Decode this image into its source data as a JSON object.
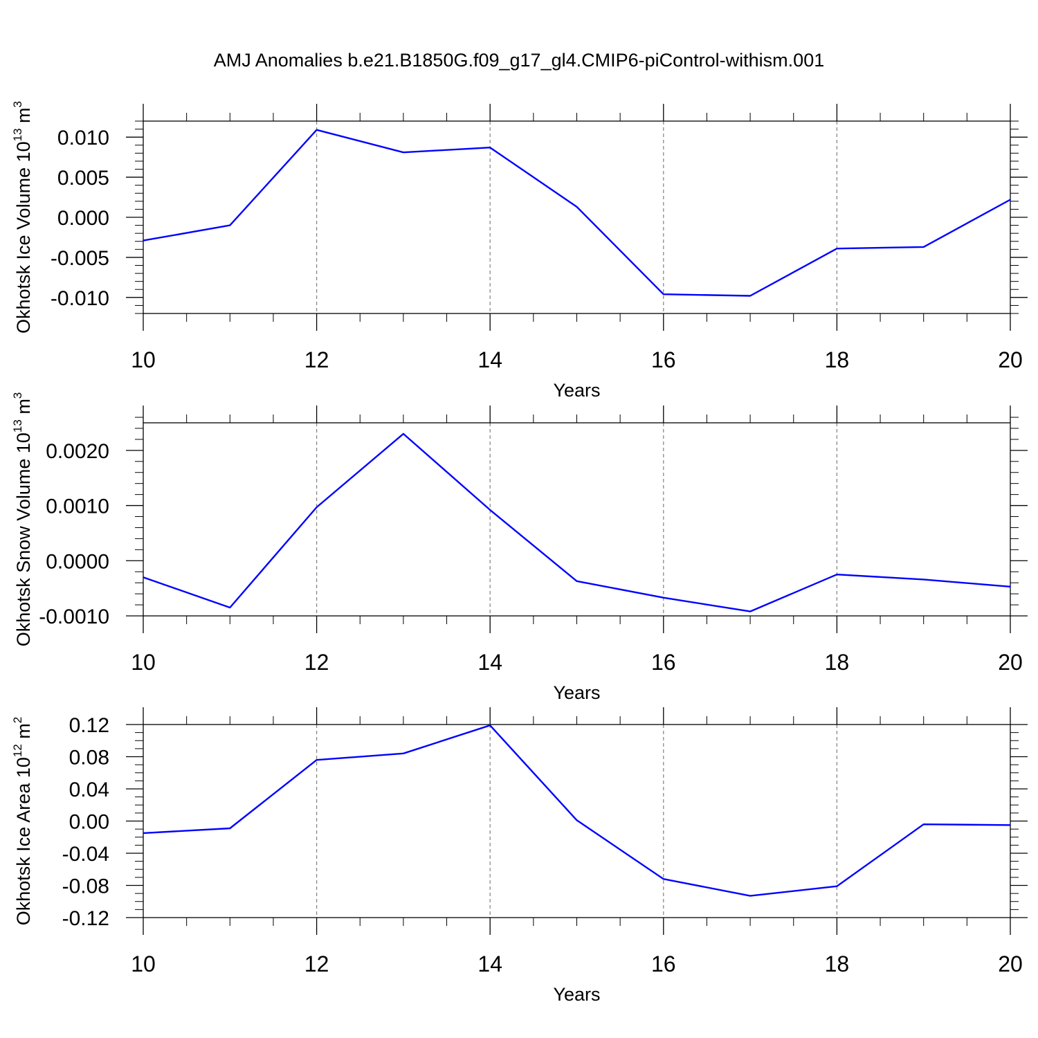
{
  "title": "AMJ Anomalies b.e21.B1850G.f09_g17_gl4.CMIP6-piControl-withism.001",
  "colors": {
    "line": "#0000ff",
    "axis": "#000000",
    "grid": "#808080"
  },
  "chart_data": [
    {
      "type": "line",
      "ylabel": "Okhotsk Ice Volume 10",
      "ylabel_exp": "13",
      "ylabel_unit": " m",
      "ylabel_unit_exp": "3",
      "xlabel": "Years",
      "xlim": [
        10,
        20
      ],
      "ylim": [
        -0.012,
        0.012
      ],
      "xticks": [
        10,
        12,
        14,
        16,
        18,
        20
      ],
      "xtick_labels": [
        "10",
        "12",
        "14",
        "16",
        "18",
        "20"
      ],
      "yticks": [
        -0.01,
        -0.005,
        0,
        0.005,
        0.01
      ],
      "ytick_labels": [
        "-0.010",
        "-0.005",
        "0.000",
        "0.005",
        "0.010"
      ],
      "yminor_step": 0.001,
      "grid": "vertical dashed",
      "series": [
        {
          "x": [
            10,
            11,
            12,
            13,
            14,
            15,
            16,
            17,
            18,
            19,
            20
          ],
          "y": [
            -0.0029,
            -0.001,
            0.0109,
            0.0081,
            0.0087,
            0.0013,
            -0.0096,
            -0.0098,
            -0.0039,
            -0.0037,
            0.0022
          ]
        }
      ]
    },
    {
      "type": "line",
      "ylabel": "Okhotsk Snow Volume 10",
      "ylabel_exp": "13",
      "ylabel_unit": " m",
      "ylabel_unit_exp": "3",
      "xlabel": "Years",
      "xlim": [
        10,
        20
      ],
      "ylim": [
        -0.001,
        0.0025
      ],
      "xticks": [
        10,
        12,
        14,
        16,
        18,
        20
      ],
      "xtick_labels": [
        "10",
        "12",
        "14",
        "16",
        "18",
        "20"
      ],
      "yticks": [
        -0.001,
        0,
        0.001,
        0.002
      ],
      "ytick_labels": [
        "-0.0010",
        "0.0000",
        "0.0010",
        "0.0020"
      ],
      "yminor_step": 0.0002,
      "grid": "vertical dashed",
      "series": [
        {
          "x": [
            10,
            11,
            12,
            13,
            14,
            15,
            16,
            17,
            18,
            19,
            20
          ],
          "y": [
            -0.0003,
            -0.00085,
            0.00097,
            0.0023,
            0.00092,
            -0.00037,
            -0.00067,
            -0.00092,
            -0.00025,
            -0.00034,
            -0.00047
          ]
        }
      ]
    },
    {
      "type": "line",
      "ylabel": "Okhotsk Ice Area 10",
      "ylabel_exp": "12",
      "ylabel_unit": " m",
      "ylabel_unit_exp": "2",
      "xlabel": "Years",
      "xlim": [
        10,
        20
      ],
      "ylim": [
        -0.12,
        0.12
      ],
      "xticks": [
        10,
        12,
        14,
        16,
        18,
        20
      ],
      "xtick_labels": [
        "10",
        "12",
        "14",
        "16",
        "18",
        "20"
      ],
      "yticks": [
        -0.12,
        -0.08,
        -0.04,
        0,
        0.04,
        0.08,
        0.12
      ],
      "ytick_labels": [
        "-0.12",
        "-0.08",
        "-0.04",
        "0.00",
        "0.04",
        "0.08",
        "0.12"
      ],
      "yminor_step": 0.01,
      "grid": "vertical dashed",
      "series": [
        {
          "x": [
            10,
            11,
            12,
            13,
            14,
            15,
            16,
            17,
            18,
            19,
            20
          ],
          "y": [
            -0.015,
            -0.009,
            0.076,
            0.084,
            0.119,
            0.001,
            -0.072,
            -0.093,
            -0.081,
            -0.004,
            -0.005
          ]
        }
      ]
    }
  ]
}
